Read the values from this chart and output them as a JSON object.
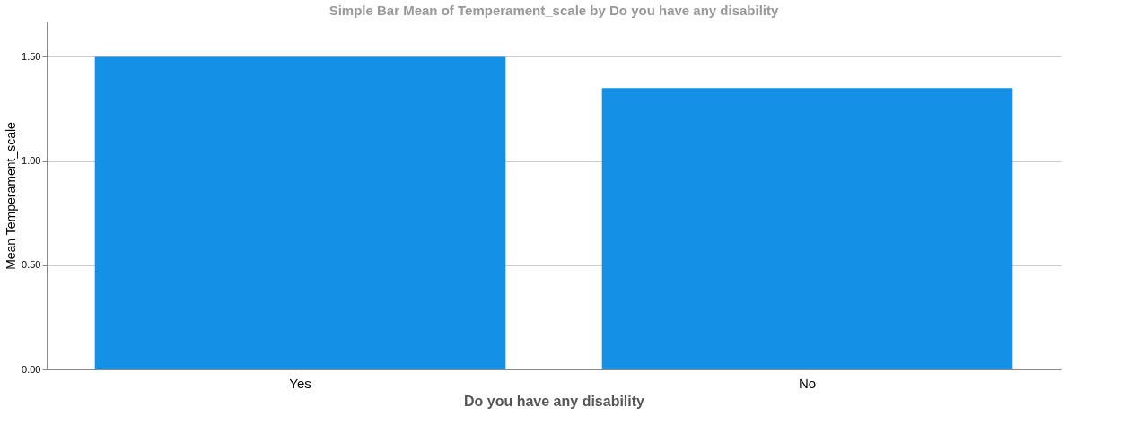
{
  "chart_data": {
    "type": "bar",
    "title": "Simple Bar Mean of Temperament_scale by Do you have any disability",
    "xlabel": "Do you have any disability",
    "ylabel": "Mean Temperament_scale",
    "categories": [
      "Yes",
      "No"
    ],
    "values": [
      1.5,
      1.35
    ],
    "color": "#1491e6",
    "ylim": [
      0,
      1.67
    ],
    "yticks": [
      {
        "value": 0,
        "label": "0.00"
      },
      {
        "value": 0.5,
        "label": "0.50"
      },
      {
        "value": 1,
        "label": "1.00"
      },
      {
        "value": 1.5,
        "label": "1.50"
      }
    ],
    "grid": "y"
  }
}
